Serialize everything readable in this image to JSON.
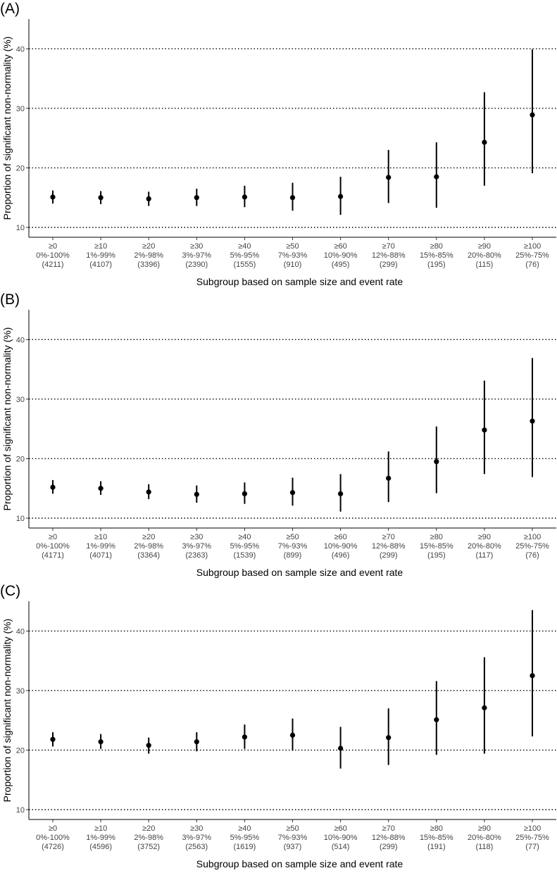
{
  "chart_data": [
    {
      "type": "scatter",
      "panel": "(A)",
      "xlabel": "Subgroup based on sample size and event rate",
      "ylabel": "Proportion of significant non-normality (%)",
      "ylim": [
        10,
        45
      ],
      "yticks": [
        10,
        20,
        30,
        40
      ],
      "grid": "horizontal dotted",
      "categories": [
        {
          "size": "≥0",
          "rate": "0%-100%",
          "n": "(4211)"
        },
        {
          "size": "≥10",
          "rate": "1%-99%",
          "n": "(4107)"
        },
        {
          "size": "≥20",
          "rate": "2%-98%",
          "n": "(3396)"
        },
        {
          "size": "≥30",
          "rate": "3%-97%",
          "n": "(2390)"
        },
        {
          "size": "≥40",
          "rate": "5%-95%",
          "n": "(1555)"
        },
        {
          "size": "≥50",
          "rate": "7%-93%",
          "n": "(910)"
        },
        {
          "size": "≥60",
          "rate": "10%-90%",
          "n": "(495)"
        },
        {
          "size": "≥70",
          "rate": "12%-88%",
          "n": "(299)"
        },
        {
          "size": "≥80",
          "rate": "15%-85%",
          "n": "(195)"
        },
        {
          "size": "≥90",
          "rate": "20%-80%",
          "n": "(115)"
        },
        {
          "size": "≥100",
          "rate": "25%-75%",
          "n": "(76)"
        }
      ],
      "points": [
        {
          "y": 15.1,
          "lo": 14.0,
          "hi": 16.2
        },
        {
          "y": 15.0,
          "lo": 13.9,
          "hi": 16.1
        },
        {
          "y": 14.8,
          "lo": 13.6,
          "hi": 16.0
        },
        {
          "y": 15.0,
          "lo": 13.6,
          "hi": 16.5
        },
        {
          "y": 15.1,
          "lo": 13.4,
          "hi": 17.0
        },
        {
          "y": 15.0,
          "lo": 12.8,
          "hi": 17.5
        },
        {
          "y": 15.2,
          "lo": 12.1,
          "hi": 18.5
        },
        {
          "y": 18.4,
          "lo": 14.1,
          "hi": 23.0
        },
        {
          "y": 18.5,
          "lo": 13.3,
          "hi": 24.3
        },
        {
          "y": 24.3,
          "lo": 17.0,
          "hi": 32.7
        },
        {
          "y": 28.9,
          "lo": 19.1,
          "hi": 39.9
        }
      ]
    },
    {
      "type": "scatter",
      "panel": "(B)",
      "xlabel": "Subgroup based on sample size and event rate",
      "ylabel": "Proportion of significant non-normality (%)",
      "ylim": [
        10,
        45
      ],
      "yticks": [
        10,
        20,
        30,
        40
      ],
      "grid": "horizontal dotted",
      "categories": [
        {
          "size": "≥0",
          "rate": "0%-100%",
          "n": "(4171)"
        },
        {
          "size": "≥10",
          "rate": "1%-99%",
          "n": "(4071)"
        },
        {
          "size": "≥20",
          "rate": "2%-98%",
          "n": "(3364)"
        },
        {
          "size": "≥30",
          "rate": "3%-97%",
          "n": "(2363)"
        },
        {
          "size": "≥40",
          "rate": "5%-95%",
          "n": "(1539)"
        },
        {
          "size": "≥50",
          "rate": "7%-93%",
          "n": "(899)"
        },
        {
          "size": "≥60",
          "rate": "10%-90%",
          "n": "(496)"
        },
        {
          "size": "≥70",
          "rate": "12%-88%",
          "n": "(299)"
        },
        {
          "size": "≥80",
          "rate": "15%-85%",
          "n": "(195)"
        },
        {
          "size": "≥90",
          "rate": "20%-80%",
          "n": "(117)"
        },
        {
          "size": "≥100",
          "rate": "25%-75%",
          "n": "(76)"
        }
      ],
      "points": [
        {
          "y": 15.2,
          "lo": 14.1,
          "hi": 16.4
        },
        {
          "y": 15.0,
          "lo": 13.9,
          "hi": 16.2
        },
        {
          "y": 14.4,
          "lo": 13.2,
          "hi": 15.7
        },
        {
          "y": 14.0,
          "lo": 12.6,
          "hi": 15.5
        },
        {
          "y": 14.1,
          "lo": 12.4,
          "hi": 16.0
        },
        {
          "y": 14.3,
          "lo": 12.1,
          "hi": 16.8
        },
        {
          "y": 14.1,
          "lo": 11.1,
          "hi": 17.4
        },
        {
          "y": 16.7,
          "lo": 12.7,
          "hi": 21.2
        },
        {
          "y": 19.5,
          "lo": 14.2,
          "hi": 25.4
        },
        {
          "y": 24.8,
          "lo": 17.4,
          "hi": 33.1
        },
        {
          "y": 26.3,
          "lo": 16.9,
          "hi": 36.9
        }
      ]
    },
    {
      "type": "scatter",
      "panel": "(C)",
      "xlabel": "Subgroup based on sample size and event rate",
      "ylabel": "Proportion of significant non-normality (%)",
      "ylim": [
        10,
        45
      ],
      "yticks": [
        10,
        20,
        30,
        40
      ],
      "grid": "horizontal dotted",
      "categories": [
        {
          "size": "≥0",
          "rate": "0%-100%",
          "n": "(4726)"
        },
        {
          "size": "≥10",
          "rate": "1%-99%",
          "n": "(4596)"
        },
        {
          "size": "≥20",
          "rate": "2%-98%",
          "n": "(3752)"
        },
        {
          "size": "≥30",
          "rate": "3%-97%",
          "n": "(2563)"
        },
        {
          "size": "≥40",
          "rate": "5%-95%",
          "n": "(1619)"
        },
        {
          "size": "≥50",
          "rate": "7%-93%",
          "n": "(937)"
        },
        {
          "size": "≥60",
          "rate": "10%-90%",
          "n": "(514)"
        },
        {
          "size": "≥70",
          "rate": "12%-88%",
          "n": "(299)"
        },
        {
          "size": "≥80",
          "rate": "15%-85%",
          "n": "(191)"
        },
        {
          "size": "≥90",
          "rate": "20%-80%",
          "n": "(118)"
        },
        {
          "size": "≥100",
          "rate": "25%-75%",
          "n": "(77)"
        }
      ],
      "points": [
        {
          "y": 21.8,
          "lo": 20.6,
          "hi": 23.0
        },
        {
          "y": 21.4,
          "lo": 20.2,
          "hi": 22.7
        },
        {
          "y": 20.8,
          "lo": 19.4,
          "hi": 22.1
        },
        {
          "y": 21.4,
          "lo": 19.8,
          "hi": 23.0
        },
        {
          "y": 22.2,
          "lo": 20.2,
          "hi": 24.3
        },
        {
          "y": 22.5,
          "lo": 19.9,
          "hi": 25.3
        },
        {
          "y": 20.3,
          "lo": 16.9,
          "hi": 23.9
        },
        {
          "y": 22.1,
          "lo": 17.5,
          "hi": 27.0
        },
        {
          "y": 25.1,
          "lo": 19.2,
          "hi": 31.6
        },
        {
          "y": 27.1,
          "lo": 19.4,
          "hi": 35.6
        },
        {
          "y": 32.5,
          "lo": 22.3,
          "hi": 43.5
        }
      ]
    }
  ]
}
